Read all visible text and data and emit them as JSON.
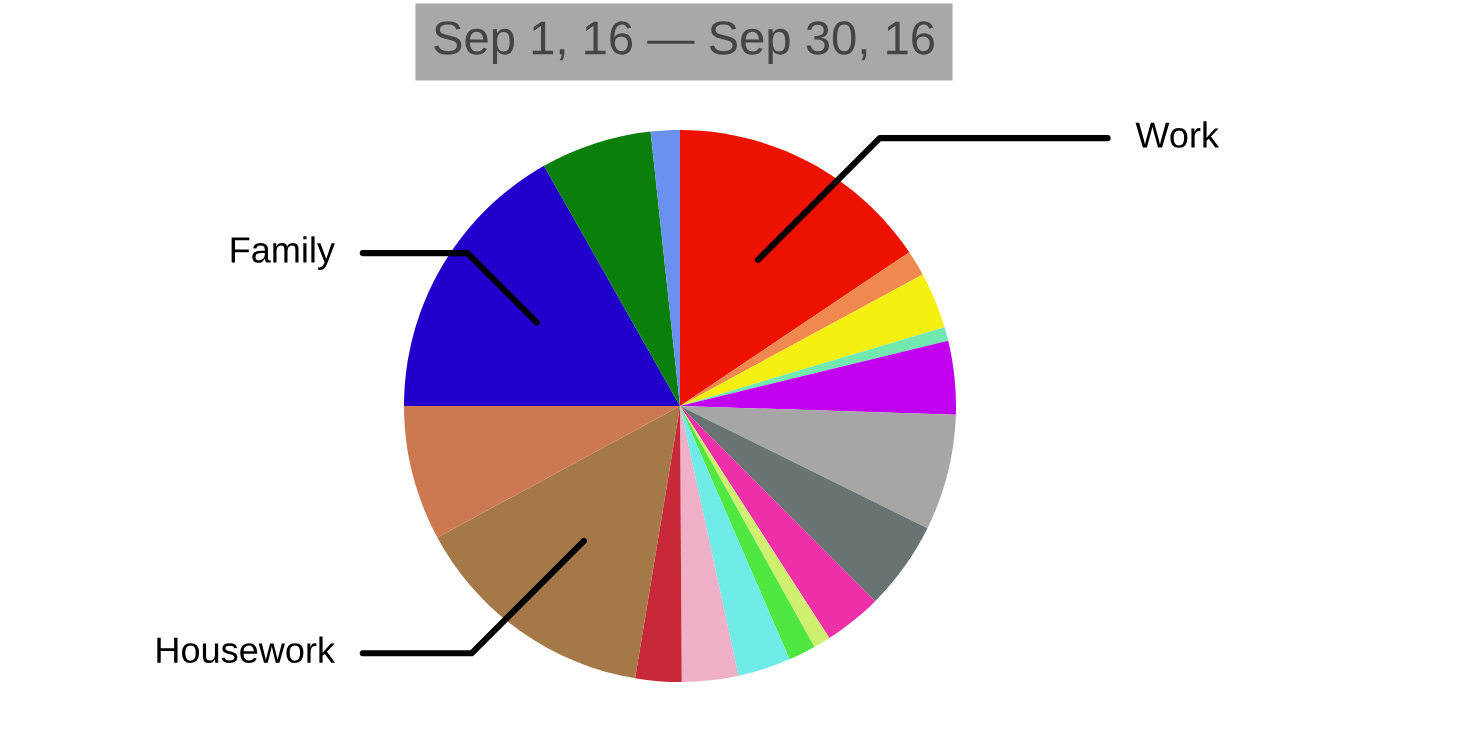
{
  "chart_data": {
    "type": "pie",
    "title": "Sep 1, 16 — Sep 30, 16",
    "categories": [
      "Work",
      null,
      null,
      null,
      null,
      null,
      null,
      null,
      null,
      null,
      null,
      null,
      null,
      "Housework",
      null,
      "Family",
      null,
      null
    ],
    "values": [
      15.6,
      1.5,
      3.3,
      0.8,
      4.3,
      6.8,
      5.2,
      3.4,
      1.0,
      1.6,
      3.1,
      3.3,
      2.7,
      14.5,
      7.9,
      16.8,
      6.5,
      1.7
    ],
    "colors": [
      "#ee1100",
      "#f08850",
      "#f5f010",
      "#70e8b0",
      "#c000ee",
      "#a6a6a6",
      "#687373",
      "#f030a8",
      "#d0f070",
      "#50e840",
      "#70ece8",
      "#f0b0c8",
      "#c82838",
      "#a57848",
      "#cc7850",
      "#2200cc",
      "#0a800a",
      "#6a90f0"
    ],
    "legend": false
  }
}
